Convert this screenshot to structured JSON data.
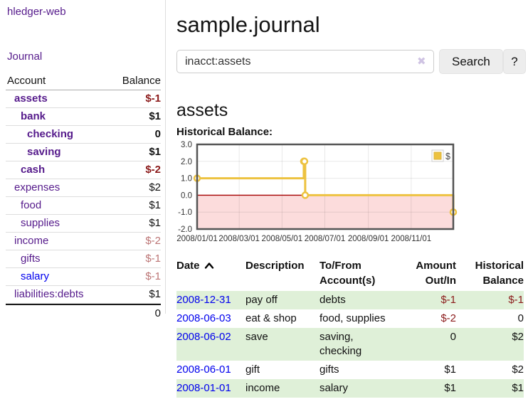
{
  "app": {
    "brand": "hledger-web",
    "nav_journal": "Journal"
  },
  "sidebar": {
    "columns": {
      "account": "Account",
      "balance": "Balance"
    },
    "accounts": [
      {
        "name": "assets",
        "depth": 1,
        "bold": true,
        "balance": "$-1",
        "balance_class": "neg"
      },
      {
        "name": "bank",
        "depth": 2,
        "bold": true,
        "balance": "$1",
        "balance_class": ""
      },
      {
        "name": "checking",
        "depth": 3,
        "bold": true,
        "balance": "0",
        "balance_class": ""
      },
      {
        "name": "saving",
        "depth": 3,
        "bold": true,
        "balance": "$1",
        "balance_class": ""
      },
      {
        "name": "cash",
        "depth": 2,
        "bold": true,
        "balance": "$-2",
        "balance_class": "neg"
      },
      {
        "name": "expenses",
        "depth": 1,
        "bold": false,
        "balance": "$2",
        "balance_class": ""
      },
      {
        "name": "food",
        "depth": 2,
        "bold": false,
        "balance": "$1",
        "balance_class": ""
      },
      {
        "name": "supplies",
        "depth": 2,
        "bold": false,
        "balance": "$1",
        "balance_class": ""
      },
      {
        "name": "income",
        "depth": 1,
        "bold": false,
        "balance": "$-2",
        "balance_class": "negmuted"
      },
      {
        "name": "gifts",
        "depth": 2,
        "bold": false,
        "balance": "$-1",
        "balance_class": "negmuted"
      },
      {
        "name": "salary",
        "depth": 2,
        "bold": false,
        "balance": "$-1",
        "balance_class": "negmuted",
        "name_class": "bluelink"
      },
      {
        "name": "liabilities:debts",
        "depth": 1,
        "bold": false,
        "balance": "$1",
        "balance_class": ""
      }
    ],
    "total": "0"
  },
  "header": {
    "title": "sample.journal"
  },
  "search": {
    "value": "inacct:assets",
    "clear_icon": "✖",
    "button_label": "Search",
    "help_label": "?"
  },
  "account_page": {
    "heading": "assets",
    "chart_label": "Historical Balance:"
  },
  "chart_data": {
    "type": "line",
    "title": "Historical Balance",
    "series": [
      {
        "name": "$",
        "color": "#EDC240",
        "step": true,
        "x": [
          "2008-01-01",
          "2008-06-01",
          "2008-06-02",
          "2008-06-03",
          "2008-12-31"
        ],
        "values": [
          1,
          2,
          2,
          0,
          -1
        ]
      }
    ],
    "xlim": [
      "2008-01-01",
      "2008-12-31"
    ],
    "ylim": [
      -2,
      3
    ],
    "yticks": [
      -2,
      -1,
      0,
      1,
      2,
      3
    ],
    "ytick_labels": [
      "-2.0",
      "-1.0",
      "0.0",
      "1.0",
      "2.0",
      "3.0"
    ],
    "xticks": [
      "2008-01-01",
      "2008-03-01",
      "2008-05-01",
      "2008-07-01",
      "2008-09-01",
      "2008-11-01"
    ],
    "xtick_labels": [
      "2008/01/01",
      "2008/03/01",
      "2008/05/01",
      "2008/07/01",
      "2008/09/01",
      "2008/11/01"
    ],
    "legend_position": "top-right",
    "grid": true,
    "negative_region_color": "#fcdcdc",
    "zero_line_color": "#a40000",
    "marker": {
      "fill": "#ffffff",
      "stroke": "#EDC240"
    }
  },
  "register": {
    "headers": [
      {
        "label": "Date",
        "align": "left",
        "sorted": "asc"
      },
      {
        "label": "Description",
        "align": "left"
      },
      {
        "label": "To/From Account(s)",
        "align": "left"
      },
      {
        "label": "Amount Out/In",
        "align": "right"
      },
      {
        "label": "Historical Balance",
        "align": "right"
      }
    ],
    "rows": [
      {
        "date": "2008-12-31",
        "description": "pay off",
        "accounts": "debts",
        "amount": "$-1",
        "amount_class": "neg",
        "balance": "$-1",
        "balance_class": "neg"
      },
      {
        "date": "2008-06-03",
        "description": "eat & shop",
        "accounts": "food, supplies",
        "amount": "$-2",
        "amount_class": "neg",
        "balance": "0",
        "balance_class": ""
      },
      {
        "date": "2008-06-02",
        "description": "save",
        "accounts": "saving, checking",
        "amount": "0",
        "amount_class": "",
        "balance": "$2",
        "balance_class": ""
      },
      {
        "date": "2008-06-01",
        "description": "gift",
        "accounts": "gifts",
        "amount": "$1",
        "amount_class": "",
        "balance": "$2",
        "balance_class": ""
      },
      {
        "date": "2008-01-01",
        "description": "income",
        "accounts": "salary",
        "amount": "$1",
        "amount_class": "",
        "balance": "$1",
        "balance_class": ""
      }
    ]
  }
}
